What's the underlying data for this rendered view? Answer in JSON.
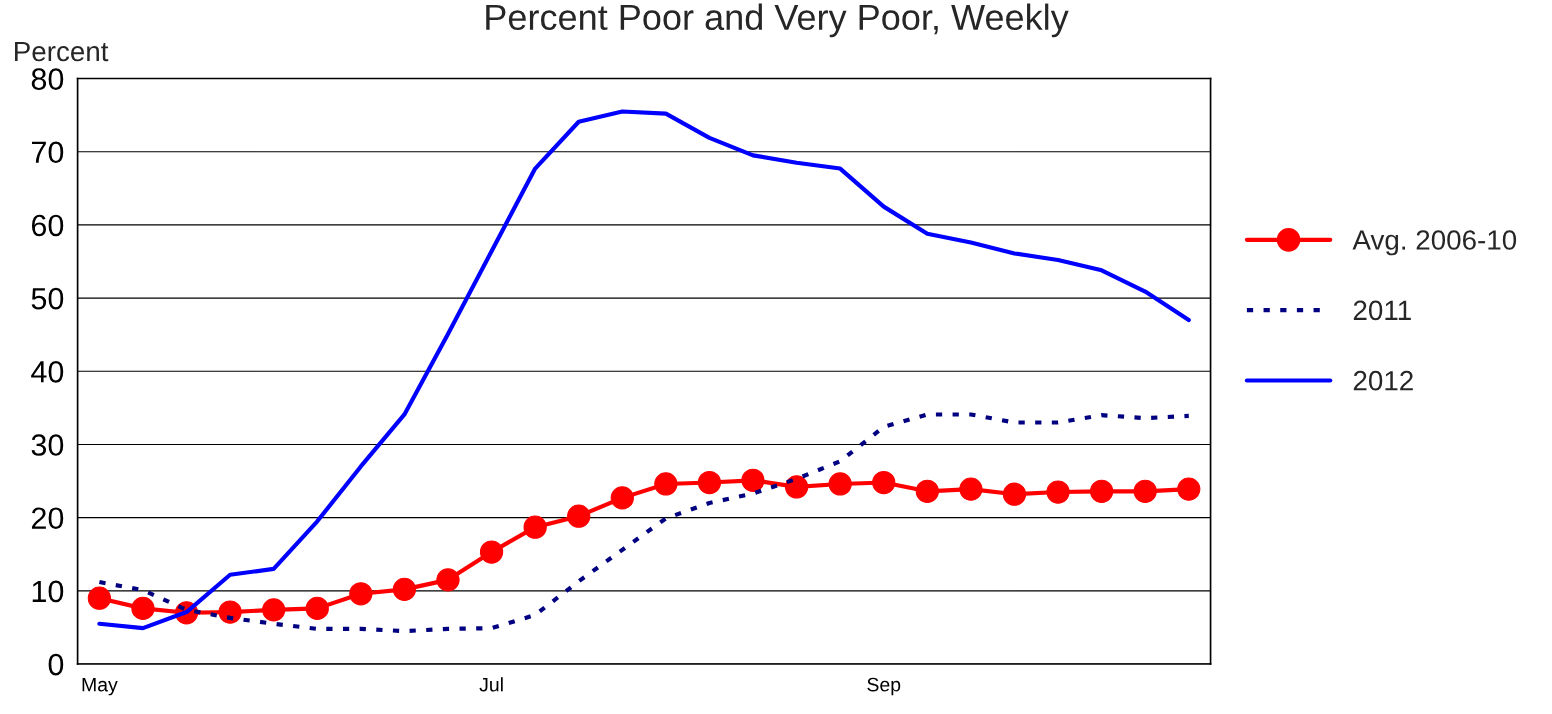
{
  "chart_data": {
    "type": "line",
    "title": "Percent Poor and Very Poor, Weekly",
    "ylabel": "Percent",
    "categories": [
      "May",
      null,
      null,
      null,
      null,
      null,
      null,
      null,
      null,
      "Jul",
      null,
      null,
      null,
      null,
      null,
      null,
      null,
      null,
      "Sep",
      null,
      null,
      null,
      null,
      null,
      null,
      null
    ],
    "series": [
      {
        "name": "Avg. 2006-10",
        "color": "#ff0000",
        "marker": "circle",
        "line_style": "solid",
        "values": [
          9.0,
          7.6,
          7.0,
          7.1,
          7.4,
          7.6,
          9.6,
          10.2,
          11.5,
          15.3,
          18.7,
          20.2,
          22.7,
          24.6,
          24.8,
          25.1,
          24.2,
          24.6,
          24.8,
          23.6,
          23.9,
          23.2,
          23.5,
          23.6,
          23.6,
          23.9
        ]
      },
      {
        "name": "2011",
        "color": "#000080",
        "marker": "none",
        "line_style": "dotted",
        "values": [
          11.2,
          10.1,
          7.4,
          6.3,
          5.5,
          4.8,
          4.8,
          4.5,
          4.8,
          4.9,
          6.7,
          11.3,
          15.6,
          19.9,
          22.0,
          23.3,
          25.3,
          27.7,
          32.4,
          34.1,
          34.1,
          33.0,
          33.0,
          34.0,
          33.6,
          33.9
        ]
      },
      {
        "name": "2012",
        "color": "#0000ff",
        "marker": "none",
        "line_style": "solid",
        "values": [
          5.5,
          4.9,
          7.1,
          12.2,
          13.0,
          19.5,
          27.0,
          34.1,
          45.1,
          56.4,
          67.7,
          74.1,
          75.5,
          75.2,
          71.9,
          69.5,
          68.5,
          67.7,
          62.5,
          58.8,
          57.6,
          56.1,
          55.2,
          53.8,
          50.9,
          47.0
        ]
      }
    ],
    "ylim": [
      0,
      80
    ],
    "yticks": [
      0,
      10,
      20,
      30,
      40,
      50,
      60,
      70,
      80
    ],
    "grid": "y",
    "legend": "right"
  }
}
